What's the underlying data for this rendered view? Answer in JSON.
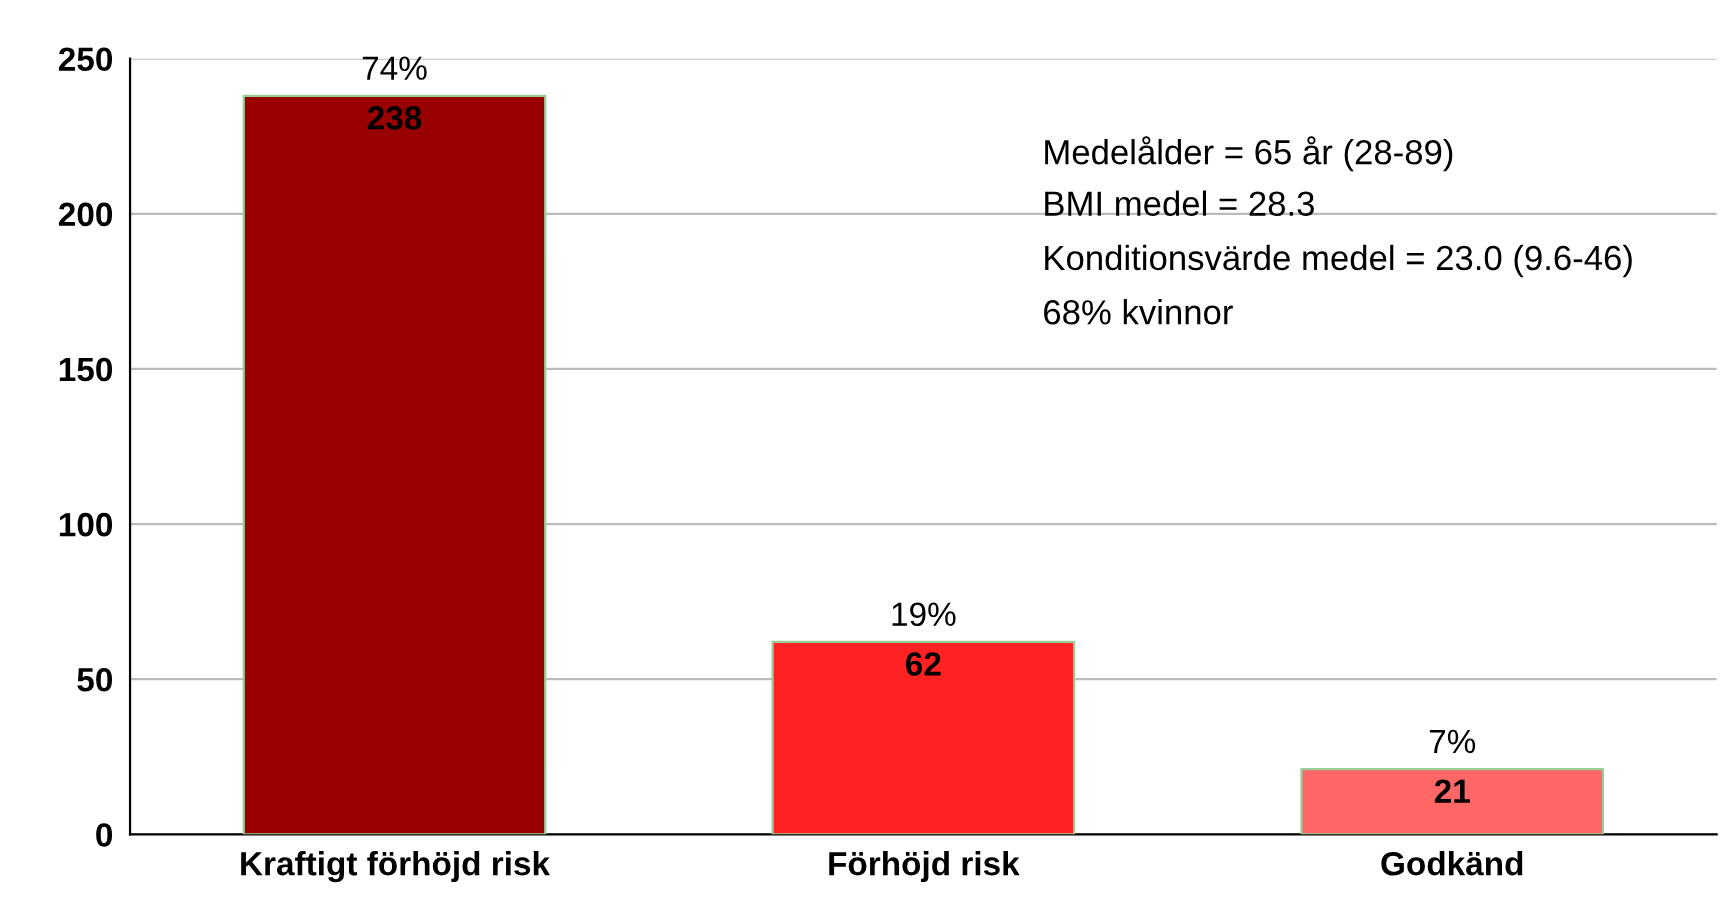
{
  "chart_data": {
    "type": "bar",
    "categories": [
      "Kraftigt förhöjd risk",
      "Förhöjd risk",
      "Godkänd"
    ],
    "values": [
      238,
      62,
      21
    ],
    "colors": [
      "#990000",
      "#ff2222",
      "#ff6666"
    ],
    "ylim": [
      0,
      250
    ],
    "yticks": [
      0,
      50,
      100,
      150,
      200,
      250
    ],
    "grid": "y",
    "data_labels": true,
    "annotations": [
      {
        "text": "74%",
        "x": "Kraftigt förhöjd risk",
        "y": 238
      },
      {
        "text": "19%",
        "x": "Förhöjd risk",
        "y": 62
      },
      {
        "text": "7%",
        "x": "Godkänd",
        "y": 21
      },
      "Medelålder = 65 år (28-89)",
      "BMI medel = 28.3",
      "Konditionsvärde medel = 23.0 (9.6-46)",
      "68% kvinnor"
    ]
  }
}
